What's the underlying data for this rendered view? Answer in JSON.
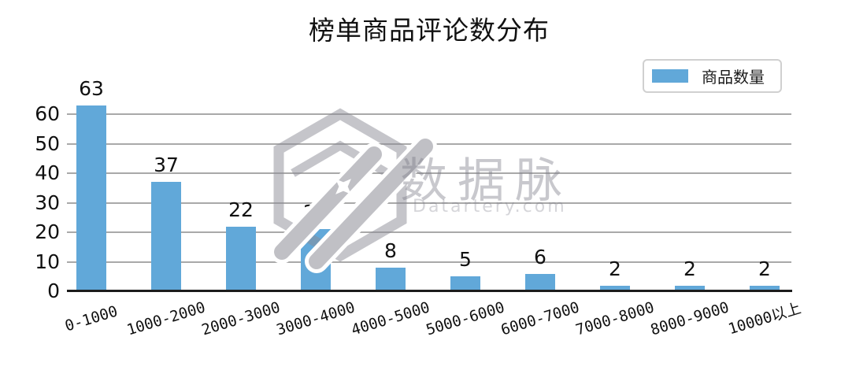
{
  "title": "榜单商品评论数分布",
  "legend": {
    "label": "商品数量"
  },
  "watermark": {
    "brand": "数据脉",
    "site": "Datartery.com"
  },
  "colors": {
    "bar": "#61A8D9",
    "grid": "#a9a9a9",
    "axis": "#1c1c1c",
    "watermark_gray": "#b7b7bf"
  },
  "chart_data": {
    "type": "bar",
    "title": "榜单商品评论数分布",
    "categories": [
      "0-1000",
      "1000-2000",
      "2000-3000",
      "3000-4000",
      "4000-5000",
      "5000-6000",
      "6000-7000",
      "7000-8000",
      "8000-9000",
      "10000以上"
    ],
    "values": [
      63,
      37,
      22,
      21,
      8,
      5,
      6,
      2,
      2,
      2
    ],
    "series_name": "商品数量",
    "xlabel": "",
    "ylabel": "",
    "ylim": [
      0,
      65
    ],
    "yticks": [
      0,
      10,
      20,
      30,
      40,
      50,
      60
    ],
    "grid": "horizontal",
    "bar_labels": true,
    "legend_position": "top-right",
    "xtick_rotation": 17
  }
}
